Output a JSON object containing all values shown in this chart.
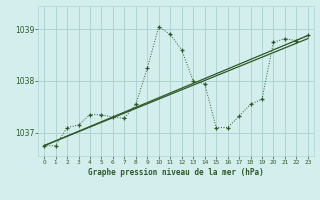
{
  "title": "Graphe pression niveau de la mer (hPa)",
  "bg_color": "#d4eeee",
  "grid_color": "#add4d4",
  "line_color": "#2d5a27",
  "xlim": [
    -0.5,
    23.5
  ],
  "ylim": [
    1036.55,
    1039.45
  ],
  "yticks": [
    1037,
    1038,
    1039
  ],
  "xticks": [
    0,
    1,
    2,
    3,
    4,
    5,
    6,
    7,
    8,
    9,
    10,
    11,
    12,
    13,
    14,
    15,
    16,
    17,
    18,
    19,
    20,
    21,
    22,
    23
  ],
  "series1_x": [
    0,
    1,
    2,
    3,
    4,
    5,
    6,
    7,
    8,
    9,
    10,
    11,
    12,
    13,
    14,
    15,
    16,
    17,
    18,
    19,
    20,
    21,
    22,
    23
  ],
  "series1_y": [
    1036.75,
    1036.75,
    1037.1,
    1037.15,
    1037.35,
    1037.35,
    1037.3,
    1037.28,
    1037.55,
    1038.25,
    1039.05,
    1038.9,
    1038.6,
    1038.0,
    1037.95,
    1037.1,
    1037.1,
    1037.32,
    1037.55,
    1037.65,
    1038.75,
    1038.82,
    1038.78,
    1038.88
  ],
  "trend1_x": [
    0,
    23
  ],
  "trend1_y": [
    1036.75,
    1038.88
  ],
  "trend2_x": [
    0,
    23
  ],
  "trend2_y": [
    1036.75,
    1038.82
  ]
}
